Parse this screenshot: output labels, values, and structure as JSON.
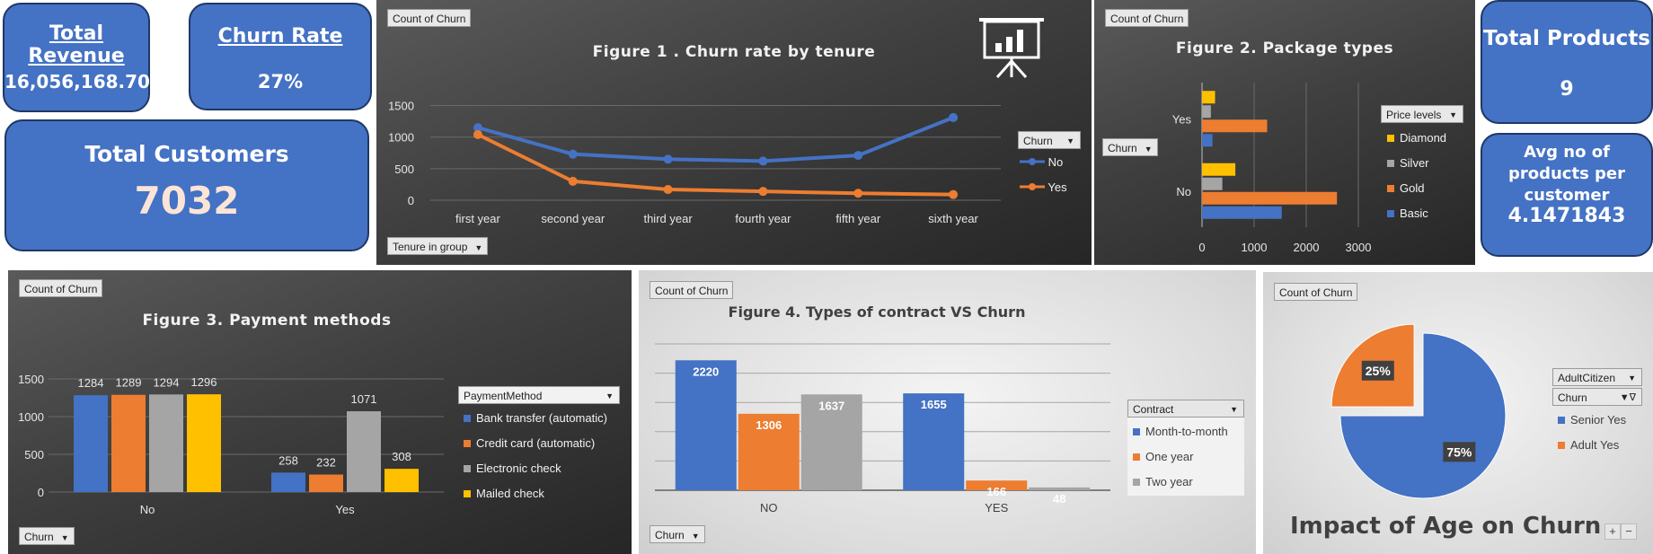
{
  "kpis": {
    "total_revenue": {
      "label": "Total Revenue",
      "value": "16,056,168.70"
    },
    "churn_rate": {
      "label": "Churn Rate",
      "value": "27%"
    },
    "total_customers": {
      "label": "Total Customers",
      "value": "7032"
    },
    "total_products": {
      "label": "Total Products",
      "value": "9"
    },
    "avg_products": {
      "label": "Avg no of products per customer",
      "value": "4.1471843"
    }
  },
  "field_buttons": {
    "count_of_churn": "Count of Churn",
    "tenure_in_group": "Tenure in group",
    "churn": "Churn",
    "price_levels": "Price levels",
    "payment_method": "PaymentMethod",
    "contract": "Contract",
    "adult_citizen": "AdultCitizen"
  },
  "zoom_controls": {
    "plus": "+",
    "minus": "−"
  },
  "colors": {
    "blue": "#4472c4",
    "orange": "#ed7d31",
    "gray": "#a5a5a5",
    "yellow": "#ffc000"
  },
  "chart_data": [
    {
      "id": "fig1",
      "type": "line",
      "title": "Figure 1 . Churn rate by tenure",
      "categories": [
        "first year",
        "second year",
        "third year",
        "fourth year",
        "fifth year",
        "sixth year"
      ],
      "series": [
        {
          "name": "No",
          "color": "#4472c4",
          "values": [
            1150,
            730,
            650,
            620,
            710,
            1310
          ]
        },
        {
          "name": "Yes",
          "color": "#ed7d31",
          "values": [
            1040,
            300,
            170,
            140,
            110,
            90
          ]
        }
      ],
      "yticks": [
        0,
        500,
        1000,
        1500
      ],
      "ylim": [
        0,
        1650
      ],
      "legend_title": "Churn",
      "grid": true
    },
    {
      "id": "fig2",
      "type": "bar",
      "orientation": "horizontal",
      "title": "Figure 2. Package types",
      "categories": [
        "No",
        "Yes"
      ],
      "series": [
        {
          "name": "Diamond",
          "color": "#ffc000",
          "values": [
            640,
            250
          ]
        },
        {
          "name": "Silver",
          "color": "#a5a5a5",
          "values": [
            390,
            170
          ]
        },
        {
          "name": "Gold",
          "color": "#ed7d31",
          "values": [
            2590,
            1250
          ]
        },
        {
          "name": "Basic",
          "color": "#4472c4",
          "values": [
            1530,
            200
          ]
        }
      ],
      "xticks": [
        0,
        1000,
        2000,
        3000
      ],
      "xlim": [
        0,
        3000
      ],
      "legend_title": "Price levels",
      "grid": true
    },
    {
      "id": "fig3",
      "type": "bar",
      "title": "Figure 3. Payment methods",
      "categories": [
        "No",
        "Yes"
      ],
      "series": [
        {
          "name": "Bank transfer (automatic)",
          "color": "#4472c4",
          "values": [
            1284,
            258
          ]
        },
        {
          "name": "Credit card (automatic)",
          "color": "#ed7d31",
          "values": [
            1289,
            232
          ]
        },
        {
          "name": "Electronic check",
          "color": "#a5a5a5",
          "values": [
            1294,
            1071
          ]
        },
        {
          "name": "Mailed check",
          "color": "#ffc000",
          "values": [
            1296,
            308
          ]
        }
      ],
      "yticks": [
        0,
        500,
        1000,
        1500
      ],
      "ylim": [
        0,
        1500
      ],
      "legend_title": "PaymentMethod",
      "grid": true
    },
    {
      "id": "fig4",
      "type": "bar",
      "title": "Figure 4. Types of contract VS Churn",
      "categories": [
        "NO",
        "YES"
      ],
      "series": [
        {
          "name": "Month-to-month",
          "color": "#4472c4",
          "values": [
            2220,
            1655
          ]
        },
        {
          "name": "One year",
          "color": "#ed7d31",
          "values": [
            1306,
            166
          ]
        },
        {
          "name": "Two year",
          "color": "#a5a5a5",
          "values": [
            1637,
            48
          ]
        }
      ],
      "ylim": [
        0,
        2500
      ],
      "legend_title": "Contract",
      "grid": true
    },
    {
      "id": "fig5",
      "type": "pie",
      "title": "Impact of Age on Churn",
      "slices": [
        {
          "name": "Senior Yes",
          "color": "#4472c4",
          "value": 75,
          "label": "75%"
        },
        {
          "name": "Adult Yes",
          "color": "#ed7d31",
          "value": 25,
          "label": "25%"
        }
      ],
      "legend_title": "AdultCitizen",
      "legend_subtitle": "Churn"
    }
  ]
}
